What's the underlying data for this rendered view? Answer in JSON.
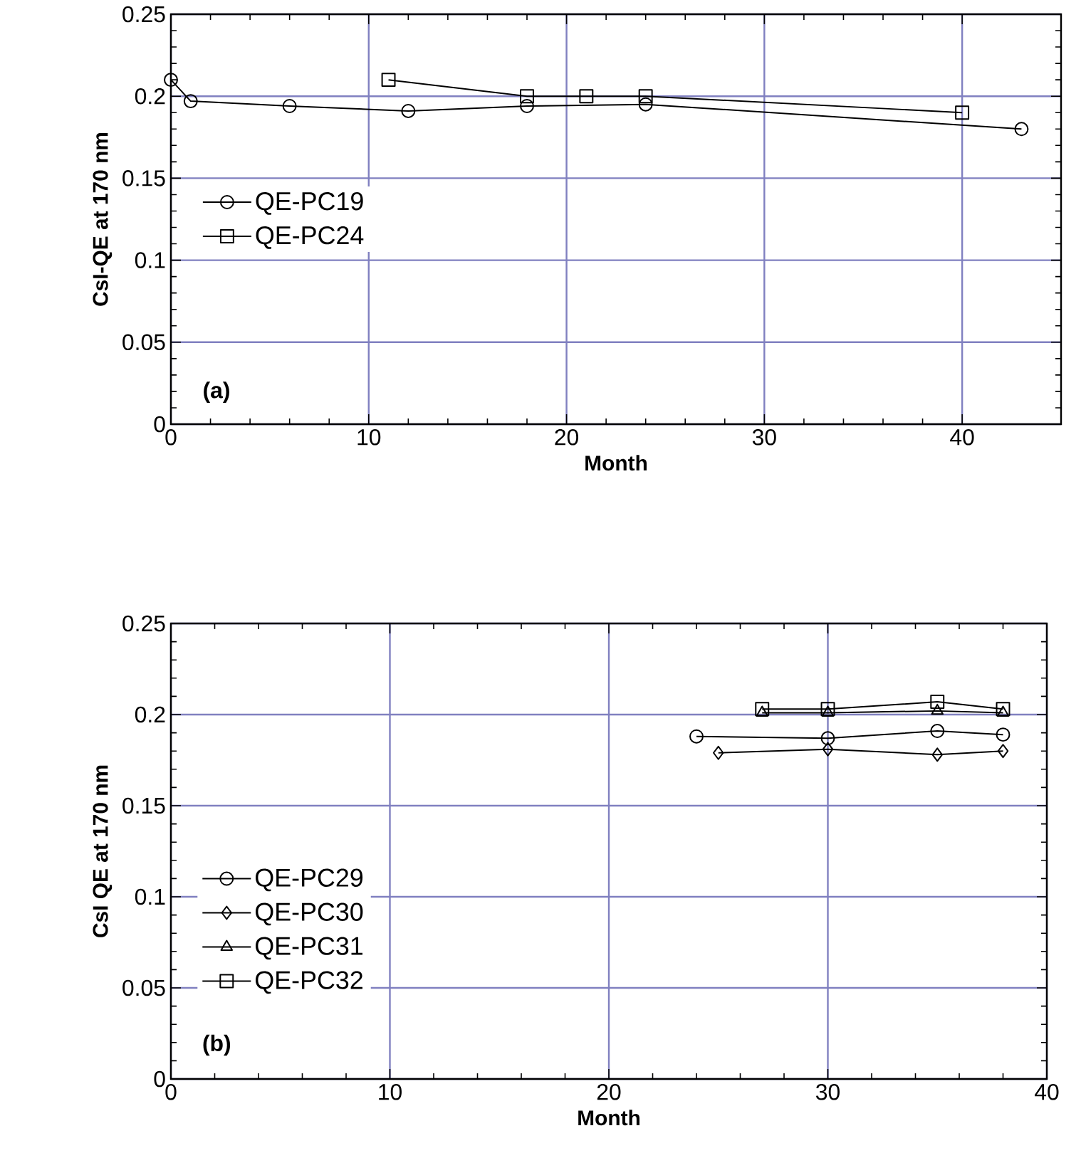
{
  "chart_data": [
    {
      "type": "line",
      "xlabel": "Month",
      "ylabel": "CsI-QE at 170 nm",
      "annotations": [
        "(a)"
      ],
      "xlim": [
        0,
        45
      ],
      "ylim": [
        0,
        0.25
      ],
      "xticks": [
        0,
        10,
        20,
        30,
        40
      ],
      "yticks": [
        0,
        0.05,
        0.1,
        0.15,
        0.2,
        0.25
      ],
      "grid": true,
      "legend": "left",
      "series": [
        {
          "name": "QE-PC19",
          "color": "#000000",
          "marker": "circle",
          "x": [
            0,
            1,
            6,
            12,
            18,
            24,
            43
          ],
          "values": [
            0.21,
            0.197,
            0.194,
            0.191,
            0.194,
            0.195,
            0.18
          ]
        },
        {
          "name": "QE-PC24",
          "color": "#000000",
          "marker": "square",
          "x": [
            11,
            18,
            21,
            24,
            40
          ],
          "values": [
            0.21,
            0.2,
            0.2,
            0.2,
            0.19
          ]
        }
      ]
    },
    {
      "type": "line",
      "xlabel": "Month",
      "ylabel": "CsI QE at 170 nm",
      "annotations": [
        "(b)"
      ],
      "xlim": [
        0,
        40
      ],
      "ylim": [
        0,
        0.25
      ],
      "xticks": [
        0,
        10,
        20,
        30,
        40
      ],
      "yticks": [
        0,
        0.05,
        0.1,
        0.15,
        0.2,
        0.25
      ],
      "grid": true,
      "legend": "bottom left",
      "series": [
        {
          "name": "QE-PC29",
          "color": "#000000",
          "marker": "circle",
          "x": [
            24,
            30,
            35,
            38
          ],
          "values": [
            0.188,
            0.187,
            0.191,
            0.189
          ]
        },
        {
          "name": "QE-PC30",
          "color": "#000000",
          "marker": "diamond",
          "x": [
            25,
            30,
            35,
            38
          ],
          "values": [
            0.179,
            0.181,
            0.178,
            0.18
          ]
        },
        {
          "name": "QE-PC31",
          "color": "#000000",
          "marker": "triangle",
          "x": [
            27,
            30,
            35,
            38
          ],
          "values": [
            0.201,
            0.201,
            0.202,
            0.201
          ]
        },
        {
          "name": "QE-PC32",
          "color": "#000000",
          "marker": "square",
          "x": [
            27,
            30,
            35,
            38
          ],
          "values": [
            0.203,
            0.203,
            0.207,
            0.203
          ]
        }
      ]
    }
  ]
}
